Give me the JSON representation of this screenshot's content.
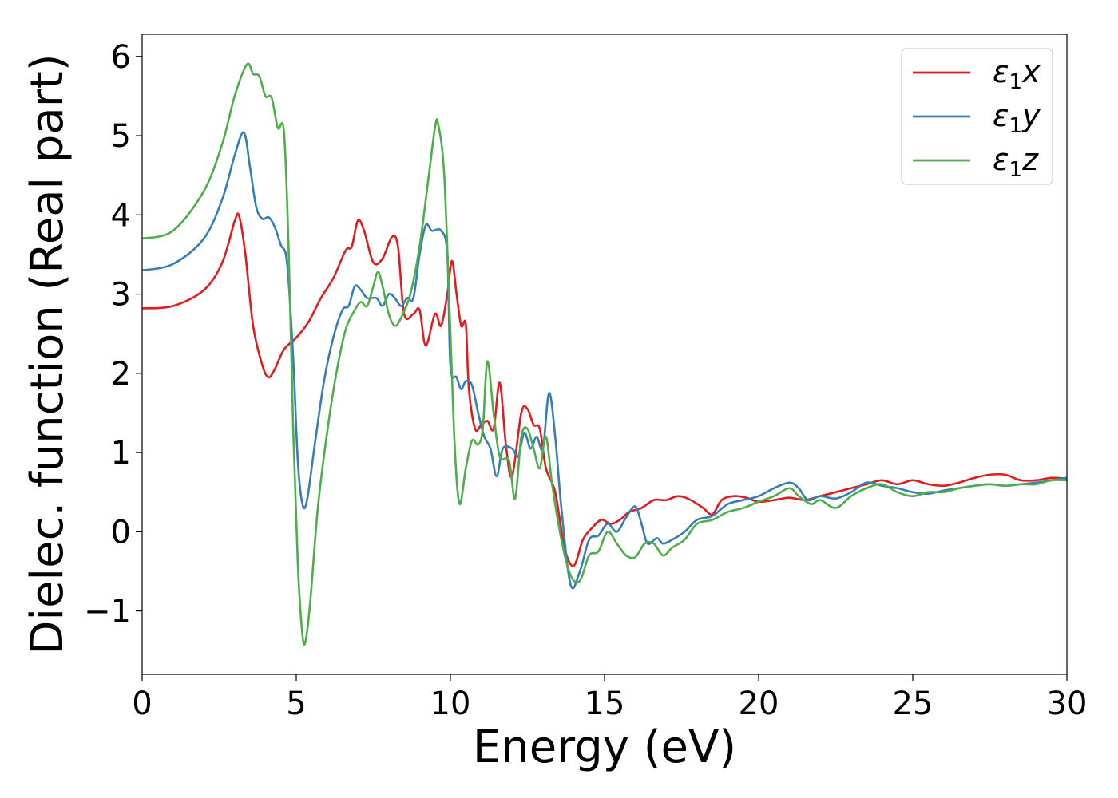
{
  "chart_data": {
    "type": "line",
    "xlabel": "Energy (eV)",
    "ylabel": "Dielec. function (Real part)",
    "xlim": [
      0,
      30
    ],
    "ylim": [
      -1.8,
      6.28
    ],
    "xticks": [
      0,
      5,
      10,
      15,
      20,
      25,
      30
    ],
    "yticks": [
      -1,
      0,
      1,
      2,
      3,
      4,
      5,
      6
    ],
    "xtick_labels": [
      "0",
      "5",
      "10",
      "15",
      "20",
      "25",
      "30"
    ],
    "ytick_labels": [
      "−1",
      "0",
      "1",
      "2",
      "3",
      "4",
      "5",
      "6"
    ],
    "grid": false,
    "legend_position": "top-right",
    "series": [
      {
        "name": "ε1x",
        "legend_symbol": "ε",
        "legend_sub": "1",
        "legend_var": "x",
        "color": "#e41a1c",
        "points": [
          [
            0,
            2.82
          ],
          [
            1.0,
            2.85
          ],
          [
            2.0,
            3.05
          ],
          [
            2.6,
            3.4
          ],
          [
            3.0,
            3.92
          ],
          [
            3.15,
            3.98
          ],
          [
            3.35,
            3.5
          ],
          [
            3.6,
            2.6
          ],
          [
            3.9,
            2.1
          ],
          [
            4.1,
            1.95
          ],
          [
            4.3,
            2.05
          ],
          [
            4.6,
            2.3
          ],
          [
            5.0,
            2.45
          ],
          [
            5.4,
            2.65
          ],
          [
            5.8,
            2.95
          ],
          [
            6.2,
            3.2
          ],
          [
            6.6,
            3.55
          ],
          [
            6.8,
            3.6
          ],
          [
            7.0,
            3.93
          ],
          [
            7.2,
            3.8
          ],
          [
            7.5,
            3.4
          ],
          [
            7.8,
            3.45
          ],
          [
            8.1,
            3.72
          ],
          [
            8.3,
            3.6
          ],
          [
            8.5,
            2.75
          ],
          [
            8.8,
            2.75
          ],
          [
            9.0,
            2.8
          ],
          [
            9.2,
            2.35
          ],
          [
            9.5,
            2.75
          ],
          [
            9.7,
            2.6
          ],
          [
            9.9,
            3.0
          ],
          [
            10.05,
            3.42
          ],
          [
            10.2,
            3.0
          ],
          [
            10.35,
            2.6
          ],
          [
            10.5,
            2.62
          ],
          [
            10.6,
            1.8
          ],
          [
            10.8,
            1.3
          ],
          [
            11.0,
            1.35
          ],
          [
            11.2,
            1.4
          ],
          [
            11.4,
            1.3
          ],
          [
            11.6,
            1.88
          ],
          [
            11.8,
            1.1
          ],
          [
            12.0,
            0.7
          ],
          [
            12.3,
            1.5
          ],
          [
            12.5,
            1.55
          ],
          [
            12.7,
            1.35
          ],
          [
            12.9,
            1.3
          ],
          [
            13.1,
            0.8
          ],
          [
            13.4,
            0.5
          ],
          [
            13.7,
            -0.2
          ],
          [
            14.0,
            -0.43
          ],
          [
            14.3,
            -0.1
          ],
          [
            14.6,
            0.05
          ],
          [
            14.9,
            0.15
          ],
          [
            15.2,
            0.1
          ],
          [
            15.5,
            0.15
          ],
          [
            15.8,
            0.25
          ],
          [
            16.2,
            0.3
          ],
          [
            16.6,
            0.4
          ],
          [
            17.0,
            0.4
          ],
          [
            17.4,
            0.45
          ],
          [
            17.8,
            0.4
          ],
          [
            18.2,
            0.3
          ],
          [
            18.5,
            0.22
          ],
          [
            18.8,
            0.4
          ],
          [
            19.2,
            0.45
          ],
          [
            19.6,
            0.43
          ],
          [
            20.0,
            0.38
          ],
          [
            20.5,
            0.4
          ],
          [
            21.0,
            0.43
          ],
          [
            21.5,
            0.4
          ],
          [
            22.0,
            0.45
          ],
          [
            22.5,
            0.5
          ],
          [
            23.0,
            0.55
          ],
          [
            23.5,
            0.6
          ],
          [
            24.0,
            0.65
          ],
          [
            24.5,
            0.6
          ],
          [
            25.0,
            0.65
          ],
          [
            25.5,
            0.6
          ],
          [
            26.0,
            0.58
          ],
          [
            26.5,
            0.62
          ],
          [
            27.0,
            0.68
          ],
          [
            27.5,
            0.72
          ],
          [
            28.0,
            0.72
          ],
          [
            28.5,
            0.65
          ],
          [
            29.0,
            0.65
          ],
          [
            29.5,
            0.68
          ],
          [
            30.0,
            0.67
          ]
        ]
      },
      {
        "name": "ε1y",
        "legend_symbol": "ε",
        "legend_sub": "1",
        "legend_var": "y",
        "color": "#377eb8",
        "points": [
          [
            0,
            3.3
          ],
          [
            1.0,
            3.38
          ],
          [
            2.0,
            3.7
          ],
          [
            2.6,
            4.2
          ],
          [
            3.0,
            4.75
          ],
          [
            3.3,
            5.04
          ],
          [
            3.5,
            4.6
          ],
          [
            3.7,
            4.1
          ],
          [
            3.9,
            3.95
          ],
          [
            4.1,
            3.97
          ],
          [
            4.3,
            3.85
          ],
          [
            4.5,
            3.62
          ],
          [
            4.7,
            3.4
          ],
          [
            4.9,
            2.2
          ],
          [
            5.05,
            0.9
          ],
          [
            5.2,
            0.35
          ],
          [
            5.35,
            0.4
          ],
          [
            5.6,
            1.1
          ],
          [
            5.9,
            1.9
          ],
          [
            6.2,
            2.45
          ],
          [
            6.5,
            2.8
          ],
          [
            6.7,
            2.85
          ],
          [
            6.9,
            3.1
          ],
          [
            7.1,
            3.05
          ],
          [
            7.3,
            2.95
          ],
          [
            7.6,
            2.95
          ],
          [
            7.8,
            2.85
          ],
          [
            8.0,
            3.0
          ],
          [
            8.2,
            2.95
          ],
          [
            8.4,
            2.85
          ],
          [
            8.6,
            2.95
          ],
          [
            8.8,
            2.95
          ],
          [
            9.0,
            3.5
          ],
          [
            9.2,
            3.87
          ],
          [
            9.4,
            3.8
          ],
          [
            9.7,
            3.8
          ],
          [
            9.9,
            3.5
          ],
          [
            10.0,
            2.1
          ],
          [
            10.2,
            1.95
          ],
          [
            10.35,
            1.8
          ],
          [
            10.5,
            1.9
          ],
          [
            10.7,
            1.85
          ],
          [
            10.9,
            1.5
          ],
          [
            11.1,
            1.2
          ],
          [
            11.3,
            1.05
          ],
          [
            11.5,
            0.7
          ],
          [
            11.7,
            1.05
          ],
          [
            12.0,
            1.05
          ],
          [
            12.2,
            0.95
          ],
          [
            12.4,
            1.25
          ],
          [
            12.6,
            1.05
          ],
          [
            12.8,
            1.2
          ],
          [
            13.0,
            1.05
          ],
          [
            13.2,
            1.75
          ],
          [
            13.4,
            1.2
          ],
          [
            13.6,
            0.3
          ],
          [
            13.9,
            -0.67
          ],
          [
            14.2,
            -0.5
          ],
          [
            14.5,
            -0.1
          ],
          [
            14.8,
            -0.05
          ],
          [
            15.1,
            0.1
          ],
          [
            15.4,
            0.0
          ],
          [
            15.7,
            0.18
          ],
          [
            16.0,
            0.32
          ],
          [
            16.2,
            0.1
          ],
          [
            16.4,
            -0.15
          ],
          [
            16.7,
            -0.08
          ],
          [
            16.9,
            -0.15
          ],
          [
            17.2,
            -0.1
          ],
          [
            17.6,
            0.0
          ],
          [
            18.0,
            0.15
          ],
          [
            18.5,
            0.2
          ],
          [
            19.0,
            0.35
          ],
          [
            19.5,
            0.4
          ],
          [
            20.0,
            0.45
          ],
          [
            20.5,
            0.55
          ],
          [
            21.0,
            0.62
          ],
          [
            21.3,
            0.55
          ],
          [
            21.6,
            0.4
          ],
          [
            22.0,
            0.45
          ],
          [
            22.5,
            0.42
          ],
          [
            23.0,
            0.5
          ],
          [
            23.5,
            0.62
          ],
          [
            24.0,
            0.58
          ],
          [
            24.5,
            0.55
          ],
          [
            25.0,
            0.5
          ],
          [
            25.5,
            0.48
          ],
          [
            26.0,
            0.52
          ],
          [
            26.5,
            0.55
          ],
          [
            27.0,
            0.58
          ],
          [
            27.5,
            0.6
          ],
          [
            28.0,
            0.58
          ],
          [
            28.5,
            0.6
          ],
          [
            29.0,
            0.62
          ],
          [
            29.5,
            0.65
          ],
          [
            30.0,
            0.68
          ]
        ]
      },
      {
        "name": "ε1z",
        "legend_symbol": "ε",
        "legend_sub": "1",
        "legend_var": "z",
        "color": "#4daf4a",
        "points": [
          [
            0,
            3.7
          ],
          [
            1.0,
            3.8
          ],
          [
            2.0,
            4.3
          ],
          [
            2.6,
            4.9
          ],
          [
            3.0,
            5.5
          ],
          [
            3.4,
            5.9
          ],
          [
            3.6,
            5.78
          ],
          [
            3.8,
            5.75
          ],
          [
            4.0,
            5.5
          ],
          [
            4.2,
            5.48
          ],
          [
            4.4,
            5.1
          ],
          [
            4.6,
            5.05
          ],
          [
            4.75,
            3.6
          ],
          [
            4.9,
            1.3
          ],
          [
            5.05,
            -0.4
          ],
          [
            5.2,
            -1.3
          ],
          [
            5.3,
            -1.38
          ],
          [
            5.45,
            -0.9
          ],
          [
            5.7,
            0.3
          ],
          [
            6.0,
            1.25
          ],
          [
            6.3,
            2.0
          ],
          [
            6.6,
            2.55
          ],
          [
            6.9,
            2.8
          ],
          [
            7.1,
            2.9
          ],
          [
            7.3,
            2.85
          ],
          [
            7.5,
            3.1
          ],
          [
            7.65,
            3.28
          ],
          [
            7.8,
            3.1
          ],
          [
            8.0,
            2.75
          ],
          [
            8.2,
            2.6
          ],
          [
            8.4,
            2.7
          ],
          [
            8.7,
            3.0
          ],
          [
            9.0,
            3.6
          ],
          [
            9.3,
            4.5
          ],
          [
            9.5,
            5.1
          ],
          [
            9.6,
            5.15
          ],
          [
            9.8,
            4.5
          ],
          [
            10.0,
            2.5
          ],
          [
            10.15,
            1.0
          ],
          [
            10.3,
            0.35
          ],
          [
            10.5,
            0.8
          ],
          [
            10.7,
            1.15
          ],
          [
            10.9,
            1.1
          ],
          [
            11.05,
            1.3
          ],
          [
            11.2,
            2.15
          ],
          [
            11.4,
            1.5
          ],
          [
            11.6,
            0.95
          ],
          [
            11.9,
            0.9
          ],
          [
            12.1,
            0.42
          ],
          [
            12.3,
            1.2
          ],
          [
            12.5,
            1.3
          ],
          [
            12.7,
            1.05
          ],
          [
            12.9,
            0.8
          ],
          [
            13.1,
            1.2
          ],
          [
            13.3,
            0.6
          ],
          [
            13.6,
            -0.1
          ],
          [
            13.9,
            -0.55
          ],
          [
            14.2,
            -0.62
          ],
          [
            14.5,
            -0.3
          ],
          [
            14.8,
            -0.25
          ],
          [
            15.1,
            0.0
          ],
          [
            15.4,
            -0.15
          ],
          [
            15.7,
            -0.3
          ],
          [
            16.0,
            -0.32
          ],
          [
            16.3,
            -0.15
          ],
          [
            16.6,
            -0.15
          ],
          [
            16.9,
            -0.3
          ],
          [
            17.2,
            -0.2
          ],
          [
            17.6,
            -0.1
          ],
          [
            18.0,
            0.1
          ],
          [
            18.5,
            0.15
          ],
          [
            19.0,
            0.25
          ],
          [
            19.5,
            0.3
          ],
          [
            20.0,
            0.38
          ],
          [
            20.5,
            0.45
          ],
          [
            21.0,
            0.55
          ],
          [
            21.3,
            0.45
          ],
          [
            21.7,
            0.35
          ],
          [
            22.0,
            0.4
          ],
          [
            22.5,
            0.3
          ],
          [
            23.0,
            0.45
          ],
          [
            23.5,
            0.55
          ],
          [
            24.0,
            0.6
          ],
          [
            24.5,
            0.5
          ],
          [
            25.0,
            0.45
          ],
          [
            25.5,
            0.5
          ],
          [
            26.0,
            0.5
          ],
          [
            26.5,
            0.55
          ],
          [
            27.0,
            0.58
          ],
          [
            27.5,
            0.6
          ],
          [
            28.0,
            0.58
          ],
          [
            28.5,
            0.6
          ],
          [
            29.0,
            0.6
          ],
          [
            29.5,
            0.65
          ],
          [
            30.0,
            0.65
          ]
        ]
      }
    ]
  }
}
